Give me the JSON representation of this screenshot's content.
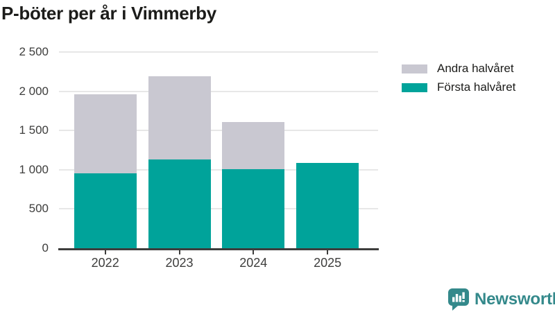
{
  "title": "P-böter per år i Vimmerby",
  "chart_data": {
    "type": "bar",
    "stacked": true,
    "title": "P-böter per år i Vimmerby",
    "categories": [
      "2022",
      "2023",
      "2024",
      "2025"
    ],
    "series": [
      {
        "name": "Första halvåret",
        "color": "#00a39a",
        "values": [
          950,
          1135,
          1010,
          1090
        ]
      },
      {
        "name": "Andra halvåret",
        "color": "#c9c8d1",
        "values": [
          1010,
          1055,
          600,
          0
        ]
      }
    ],
    "totals": [
      1960,
      2190,
      1610,
      1090
    ],
    "xlabel": "",
    "ylabel": "",
    "ylim": [
      0,
      2500
    ],
    "yticks": [
      0,
      500,
      1000,
      1500,
      2000,
      2500
    ],
    "ytick_labels": [
      "0",
      "500",
      "1 000",
      "1 500",
      "2 000",
      "2 500"
    ],
    "grid": true,
    "legend_position": "top-right",
    "legend": [
      {
        "label": "Andra halvåret",
        "color": "#c9c8d1"
      },
      {
        "label": "Första halvåret",
        "color": "#00a39a"
      }
    ]
  },
  "colors": {
    "first_half": "#00a39a",
    "second_half": "#c9c8d1",
    "gridline": "#e7e7e7",
    "axis": "#3d3d3c",
    "text_dark": "#1c1c1a",
    "logo": "#34898b"
  },
  "branding": {
    "logo_text": "Newsworthy",
    "logo_icon": "bar-chart-speech-bubble-icon"
  }
}
